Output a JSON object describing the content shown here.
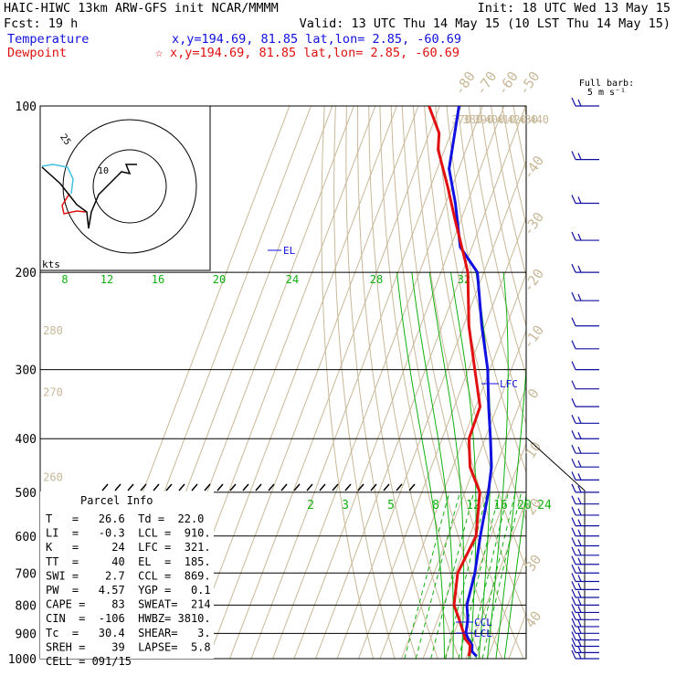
{
  "header": {
    "line1_left": "HAIC-HIWC 13km ARW-GFS init   NCAR/MMMM",
    "line1_right": "Init: 18 UTC Wed 13 May 15",
    "line2_left": "Fcst:   19 h",
    "line2_right": "Valid: 13 UTC Thu 14 May 15 (10 LST Thu 14 May 15)",
    "line3_label": "Temperature",
    "line3_coords": "x,y=194.69, 81.85   lat,lon=  2.85, -60.69",
    "line4_label": "Dewpoint",
    "line4_marker": "☆",
    "line4_coords": "x,y=194.69, 81.85   lat,lon=  2.85, -60.69"
  },
  "colors": {
    "temperature": "#1010e0",
    "dewpoint": "#e01010",
    "isotherm": "#c8b898",
    "mixing_ratio": "#10b010",
    "wind": "#1010a0",
    "axes": "#000000"
  },
  "barb_legend": {
    "line1": "Full barb:",
    "line2": "5 m s⁻¹"
  },
  "hodograph": {
    "units": "kts",
    "ring_label": "25",
    "inner_label": "10",
    "lines": [
      "10"
    ]
  },
  "parcel_info": {
    "title": "Parcel Info",
    "rows": [
      "T   =   26.6  Td =  22.0",
      "LI  =   -0.3  LCL =  910.",
      "K   =     24  LFC =  321.",
      "TT  =     40  EL  =  185.",
      "SWI =    2.7  CCL =  869.",
      "PW  =   4.57  YGP =   0.1",
      "CAPE =    83  SWEAT=  214",
      "CIN  =  -106  HWBZ= 3810.",
      "Tc  =   30.4  SHEAR=   3.",
      "SREH =    39  LAPSE=  5.8",
      "CELL = 091/15"
    ]
  },
  "level_labels": {
    "el": "EL",
    "lfc": "LFC",
    "ccl": "CCL",
    "lcl": "LCL"
  },
  "chart_data": {
    "type": "line",
    "chart_subtype": "skew-T log-p diagram",
    "y_axis": {
      "scale": "log",
      "reversed": true,
      "range": [
        1000,
        100
      ],
      "tick_labels": [
        "100",
        "200",
        "300",
        "400",
        "500",
        "600",
        "700",
        "800",
        "900",
        "1000"
      ]
    },
    "isotherm_labels": [
      "-80",
      "-70",
      "-60",
      "-50",
      "-40",
      "-30",
      "-20",
      "-10",
      "0",
      "10",
      "20",
      "30",
      "40"
    ],
    "theta_labels": [
      "370",
      "380",
      "390",
      "400",
      "410",
      "420",
      "430",
      "440",
      "280",
      "270",
      "260"
    ],
    "mixing_ratio_labels_upper": [
      "8",
      "12",
      "16",
      "20",
      "24",
      "28",
      "32"
    ],
    "mixing_ratio_labels_lower": [
      "2",
      "3",
      "5",
      "8",
      "12",
      "16",
      "20",
      "24"
    ],
    "series": [
      {
        "name": "Temperature",
        "x": [
          24.5,
          21.5,
          20.5,
          17.5,
          15.5,
          14.0,
          11.0,
          9.0,
          5.0,
          1.0,
          -2.0,
          -7.5,
          -14.0,
          -21.0,
          -31.5,
          -43.0,
          -55.5,
          -65.5,
          -74.5,
          -81.0
        ],
        "y": [
          990,
          970,
          945,
          920,
          900,
          850,
          800,
          700,
          600,
          500,
          450,
          400,
          350,
          300,
          250,
          200,
          180,
          150,
          130,
          100
        ]
      },
      {
        "name": "Dewpoint",
        "x": [
          21.0,
          20.5,
          19.5,
          16.0,
          14.5,
          10.0,
          5.0,
          1.0,
          3.0,
          -3.0,
          -12.0,
          -17.5,
          -18.0,
          -27.0,
          -37.5,
          -47.5,
          -51.0,
          -63.0,
          -72.0,
          -83.0,
          -85.5,
          -95.0
        ],
        "y": [
          990,
          970,
          945,
          920,
          900,
          850,
          800,
          700,
          600,
          500,
          450,
          400,
          350,
          300,
          250,
          200,
          190,
          160,
          140,
          120,
          112,
          100
        ]
      }
    ]
  }
}
